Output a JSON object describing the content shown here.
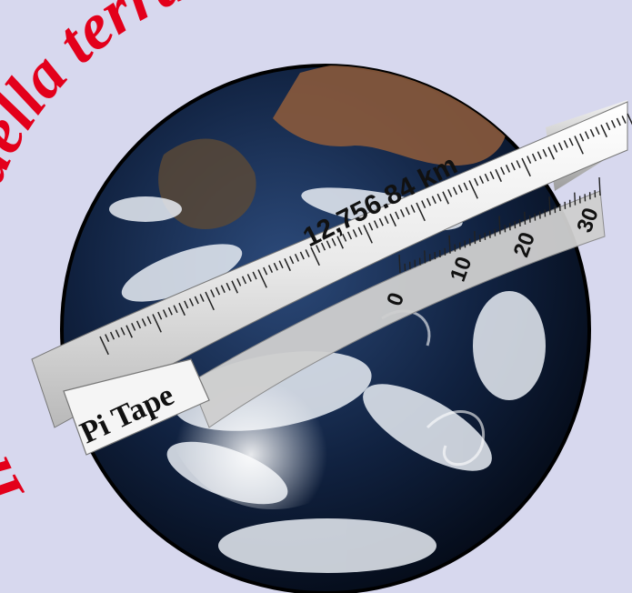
{
  "arc_heading": {
    "text": "Il diametro della terra è",
    "color": "#e3001b"
  },
  "tape": {
    "brand": "Pi Tape",
    "measurement": "12,756.84 km",
    "vernier_labels": [
      "0",
      "10",
      "20",
      "30"
    ]
  },
  "colors": {
    "background": "#d7d8ee",
    "ocean": "#0b1a33",
    "land": "#8a5a3c",
    "clouds": "#e9eef5",
    "tape": "#e6e6e6"
  }
}
